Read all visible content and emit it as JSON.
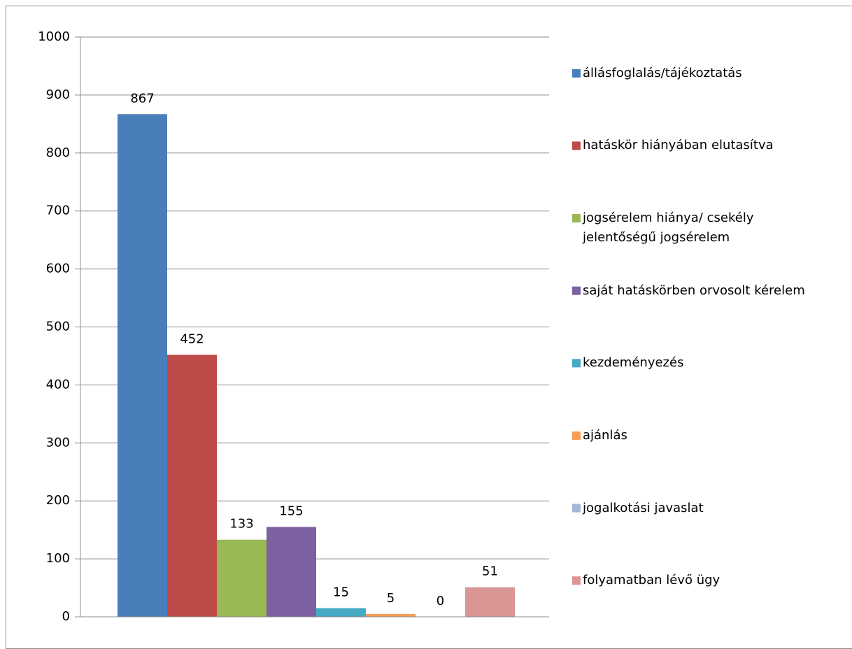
{
  "chart_data": {
    "type": "bar",
    "series": [
      {
        "name": "állásfoglalás/tájékoztatás",
        "color": "#4a7ebb",
        "values": [
          867
        ]
      },
      {
        "name": "hatáskör hiányában elutasítva",
        "color": "#be4b48",
        "values": [
          452
        ]
      },
      {
        "name": "jogsérelem hiánya/ csekély jelentőségű jogsérelem",
        "color": "#98b954",
        "values": [
          133
        ]
      },
      {
        "name": "saját hatáskörben orvosolt kérelem",
        "color": "#7d60a0",
        "values": [
          155
        ]
      },
      {
        "name": "kezdeményezés",
        "color": "#46aac5",
        "values": [
          15
        ]
      },
      {
        "name": "ajánlás",
        "color": "#f59d56",
        "values": [
          5
        ]
      },
      {
        "name": "jogalkotási javaslat",
        "color": "#a5b7d9",
        "values": [
          0
        ]
      },
      {
        "name": "folyamatban lévő ügy",
        "color": "#d99694",
        "values": [
          51
        ]
      }
    ],
    "ylim": [
      0,
      1000
    ],
    "yticks": [
      0,
      100,
      200,
      300,
      400,
      500,
      600,
      700,
      800,
      900,
      1000
    ],
    "grid": true,
    "legend": "right"
  }
}
